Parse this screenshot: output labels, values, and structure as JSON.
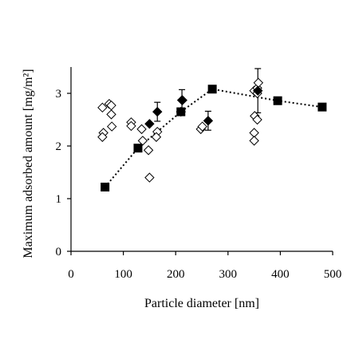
{
  "chart_data": {
    "type": "scatter",
    "title": "",
    "xlabel": "Particle diameter [nm]",
    "ylabel": "Maximum adsorbed amount [mg/m²]",
    "xlim": [
      0,
      500
    ],
    "ylim": [
      0,
      3.5
    ],
    "x_ticks": [
      "0",
      "100",
      "200",
      "300",
      "400",
      "500"
    ],
    "y_ticks": [
      "0",
      "1",
      "2",
      "3"
    ],
    "grid": false,
    "legend": "none",
    "series": [
      {
        "marker": "open-diamond",
        "color": "#000000",
        "points": [
          {
            "x": 60,
            "y": 2.73
          },
          {
            "x": 62,
            "y": 2.25
          },
          {
            "x": 60,
            "y": 2.17
          },
          {
            "x": 73,
            "y": 2.8
          },
          {
            "x": 77,
            "y": 2.77
          },
          {
            "x": 77,
            "y": 2.6
          },
          {
            "x": 78,
            "y": 2.37
          },
          {
            "x": 115,
            "y": 2.45
          },
          {
            "x": 115,
            "y": 2.38
          },
          {
            "x": 135,
            "y": 2.32
          },
          {
            "x": 137,
            "y": 2.1
          },
          {
            "x": 148,
            "y": 1.92
          },
          {
            "x": 150,
            "y": 1.4
          },
          {
            "x": 165,
            "y": 2.27
          },
          {
            "x": 163,
            "y": 2.17
          },
          {
            "x": 210,
            "y": 2.65
          },
          {
            "x": 213,
            "y": 2.87
          },
          {
            "x": 248,
            "y": 2.32
          },
          {
            "x": 251,
            "y": 2.37
          },
          {
            "x": 350,
            "y": 3.05
          },
          {
            "x": 351,
            "y": 2.57
          },
          {
            "x": 350,
            "y": 2.25
          },
          {
            "x": 350,
            "y": 2.1
          },
          {
            "x": 356,
            "y": 3.1
          },
          {
            "x": 356,
            "y": 3.0
          },
          {
            "x": 356,
            "y": 2.5
          },
          {
            "x": 358,
            "y": 3.2
          }
        ]
      },
      {
        "marker": "filled-diamond",
        "color": "#000000",
        "points": [
          {
            "x": 150,
            "y": 2.42
          },
          {
            "x": 165,
            "y": 2.65,
            "err": 0.18
          },
          {
            "x": 212,
            "y": 2.87,
            "err": 0.2
          },
          {
            "x": 262,
            "y": 2.48,
            "err": 0.18
          },
          {
            "x": 357,
            "y": 3.05,
            "err": 0.42
          }
        ]
      },
      {
        "marker": "filled-square",
        "color": "#000000",
        "line": "dotted",
        "points": [
          {
            "x": 65,
            "y": 1.22
          },
          {
            "x": 128,
            "y": 1.96
          },
          {
            "x": 210,
            "y": 2.65
          },
          {
            "x": 270,
            "y": 3.08
          },
          {
            "x": 395,
            "y": 2.86
          },
          {
            "x": 480,
            "y": 2.74
          }
        ]
      }
    ]
  }
}
